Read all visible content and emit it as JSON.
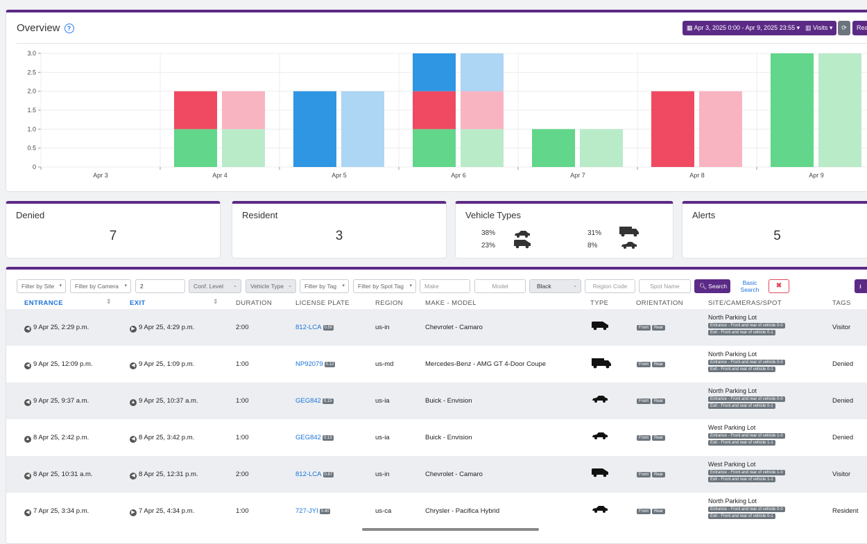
{
  "overview": {
    "title": "Overview",
    "date_range": "Apr 3, 2025 0:00 - Apr 9, 2025 23:55",
    "visits_label": "Visits",
    "reset_label": "Rea"
  },
  "chart_data": {
    "type": "bar",
    "categories": [
      "Apr 3",
      "Apr 4",
      "Apr 5",
      "Apr 6",
      "Apr 7",
      "Apr 8",
      "Apr 9"
    ],
    "yticks": [
      "3.0",
      "2.5",
      "2.0",
      "1.5",
      "1.0",
      "0.5",
      "0"
    ],
    "ylim": [
      0,
      3
    ],
    "stacked": true,
    "series_colors": {
      "green": "#62d68a",
      "green_light": "#b9ebc9",
      "red": "#ef4a62",
      "red_light": "#f8b4c1",
      "blue": "#2e96e2",
      "blue_light": "#add5f4"
    },
    "entrance": [
      {
        "green": 0,
        "red": 0,
        "blue": 0
      },
      {
        "green": 1,
        "red": 1,
        "blue": 0
      },
      {
        "green": 0,
        "red": 0,
        "blue": 2
      },
      {
        "green": 1,
        "red": 1,
        "blue": 1
      },
      {
        "green": 1,
        "red": 0,
        "blue": 0
      },
      {
        "green": 0,
        "red": 2,
        "blue": 0
      },
      {
        "green": 3,
        "red": 0,
        "blue": 0
      }
    ],
    "exit": [
      {
        "green": 0,
        "red": 0,
        "blue": 0
      },
      {
        "green": 1,
        "red": 1,
        "blue": 0
      },
      {
        "green": 0,
        "red": 0,
        "blue": 2
      },
      {
        "green": 1,
        "red": 1,
        "blue": 1
      },
      {
        "green": 1,
        "red": 0,
        "blue": 0
      },
      {
        "green": 0,
        "red": 2,
        "blue": 0
      },
      {
        "green": 3,
        "red": 0,
        "blue": 0
      }
    ]
  },
  "stats": {
    "denied": {
      "label": "Denied",
      "value": "7"
    },
    "resident": {
      "label": "Resident",
      "value": "3"
    },
    "vehicle_types": {
      "label": "Vehicle Types",
      "items": [
        {
          "pct": "38%",
          "icon": "sedan-icon"
        },
        {
          "pct": "31%",
          "icon": "truck-icon"
        },
        {
          "pct": "23%",
          "icon": "van-icon"
        },
        {
          "pct": "8%",
          "icon": "coupe-icon"
        }
      ]
    },
    "alerts": {
      "label": "Alerts",
      "value": "5"
    }
  },
  "filters": {
    "site": "Filter by Site",
    "camera": "Filter by Camera",
    "number_value": "2",
    "conf_level": "Conf. Level",
    "vehicle_type": "Vehicle Type",
    "tag": "Filter by Tag",
    "spot_tag": "Filter by Spot Tag",
    "make_placeholder": "Make",
    "model_placeholder": "Model",
    "color": "Black",
    "region_placeholder": "Region Code",
    "spot_placeholder": "Spot Name",
    "search_label": "Search",
    "basic_search_label": "Basic Search"
  },
  "table": {
    "headers": {
      "entrance": "ENTRANCE",
      "exit": "EXIT",
      "duration": "DURATION",
      "plate": "LICENSE PLATE",
      "region": "REGION",
      "make_model": "MAKE - MODEL",
      "type": "TYPE",
      "orientation": "ORIENTATION",
      "site": "SITE/CAMERAS/SPOT",
      "tags": "TAGS"
    },
    "rows": [
      {
        "entrance": "9 Apr 25, 2:29 p.m.",
        "exit": "9 Apr 25, 4:29 p.m.",
        "duration": "2:00",
        "plate": "812-LCA",
        "conf": "0.50",
        "region": "us-in",
        "make_model": "Chevrolet - Camaro",
        "type_icon": "van-icon",
        "front": "Front",
        "rear": "Rear",
        "site": "North Parking Lot",
        "cam1": "Entrance - Front and rear of vehicle 0-0",
        "cam2": "Exit - Front and rear of vehicle 0-1",
        "tag": "Visitor"
      },
      {
        "entrance": "9 Apr 25, 12:09 p.m.",
        "exit": "9 Apr 25, 1:09 p.m.",
        "duration": "1:00",
        "plate": "NP92079",
        "conf": "0.12",
        "region": "us-md",
        "make_model": "Mercedes-Benz - AMG GT 4-Door Coupe",
        "type_icon": "truck-icon",
        "front": "Front",
        "rear": "Rear",
        "site": "North Parking Lot",
        "cam1": "Entrance - Front and rear of vehicle 0-0",
        "cam2": "Exit - Front and rear of vehicle 0-1",
        "tag": "Denied"
      },
      {
        "entrance": "9 Apr 25, 9:37 a.m.",
        "exit": "9 Apr 25, 10:37 a.m.",
        "duration": "1:00",
        "plate": "GEG842",
        "conf": "0.15",
        "region": "us-ia",
        "make_model": "Buick - Envision",
        "type_icon": "sedan-icon",
        "front": "Front",
        "rear": "Rear",
        "site": "North Parking Lot",
        "cam1": "Entrance - Front and rear of vehicle 0-0",
        "cam2": "Exit - Front and rear of vehicle 0-1",
        "tag": "Denied"
      },
      {
        "entrance": "8 Apr 25, 2:42 p.m.",
        "exit": "8 Apr 25, 3:42 p.m.",
        "duration": "1:00",
        "plate": "GEG842",
        "conf": "0.13",
        "region": "us-ia",
        "make_model": "Buick - Envision",
        "type_icon": "sedan-icon",
        "front": "Front",
        "rear": "Rear",
        "site": "West Parking Lot",
        "cam1": "Entrance - Front and rear of vehicle 1-0",
        "cam2": "Exit - Front and rear of vehicle 1-1",
        "tag": "Denied"
      },
      {
        "entrance": "8 Apr 25, 10:31 a.m.",
        "exit": "8 Apr 25, 12:31 p.m.",
        "duration": "2:00",
        "plate": "812-LCA",
        "conf": "0.87",
        "region": "us-in",
        "make_model": "Chevrolet - Camaro",
        "type_icon": "van-icon",
        "front": "Front",
        "rear": "Rear",
        "site": "West Parking Lot",
        "cam1": "Entrance - Front and rear of vehicle 1-0",
        "cam2": "Exit - Front and rear of vehicle 1-1",
        "tag": "Visitor"
      },
      {
        "entrance": "7 Apr 25, 3:34 p.m.",
        "exit": "7 Apr 25, 4:34 p.m.",
        "duration": "1:00",
        "plate": "727-JYI",
        "conf": "0.40",
        "region": "us-ca",
        "make_model": "Chrysler - Pacifica Hybrid",
        "type_icon": "sedan-icon",
        "front": "Front",
        "rear": "Rear",
        "site": "North Parking Lot",
        "cam1": "Entrance - Front and rear of vehicle 0-0",
        "cam2": "Exit - Front and rear of vehicle 0-1",
        "tag": "Resident"
      }
    ]
  }
}
